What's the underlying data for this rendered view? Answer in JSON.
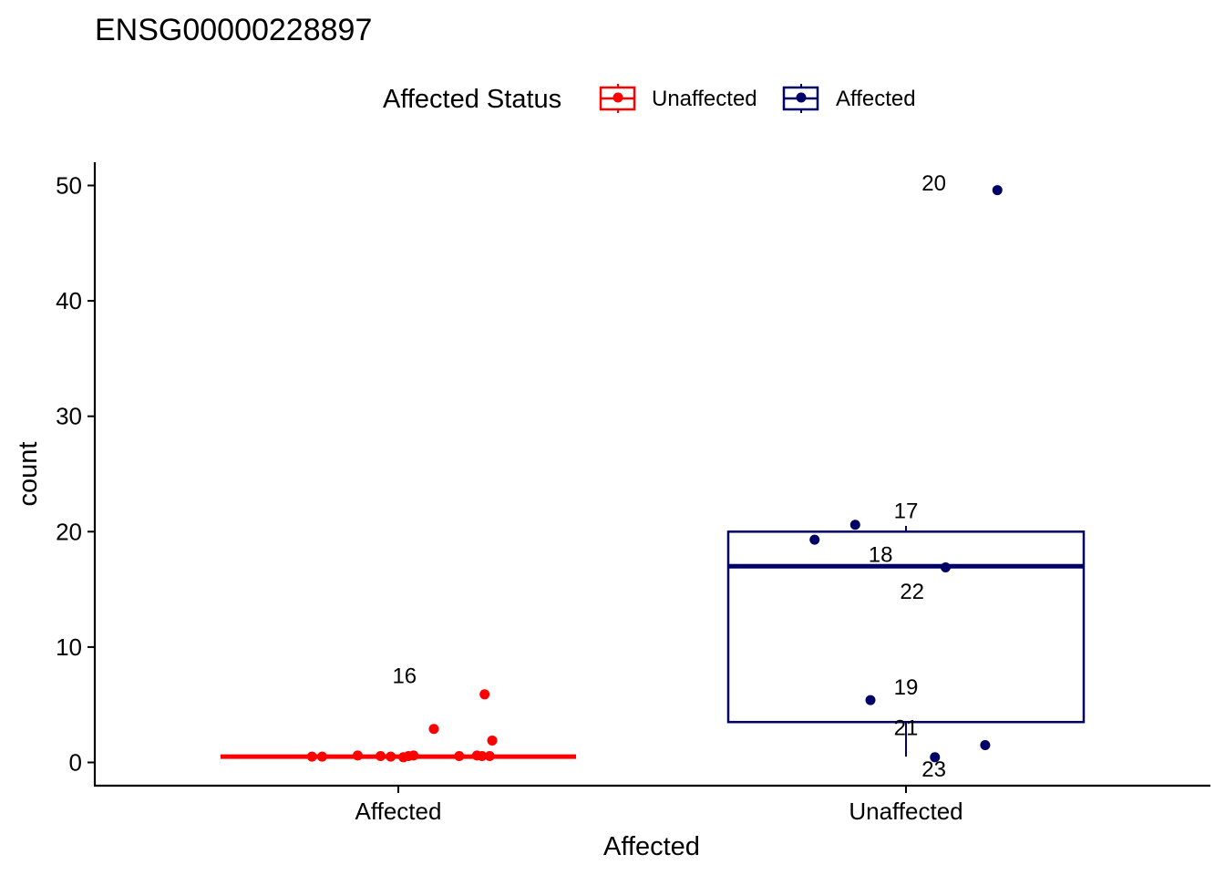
{
  "chart_data": {
    "type": "box",
    "title": "ENSG00000228897",
    "xlabel": "Affected",
    "ylabel": "count",
    "ylim": [
      -1.8,
      52
    ],
    "yticks": [
      0,
      10,
      20,
      30,
      40,
      50
    ],
    "categories": [
      "Affected",
      "Unaffected"
    ],
    "legend": {
      "title": "Affected Status",
      "position": "top",
      "entries": [
        {
          "label": "Unaffected",
          "color": "#ff0000"
        },
        {
          "label": "Affected",
          "color": "#000066"
        }
      ]
    },
    "groups": [
      {
        "category": "Affected",
        "status": "Unaffected",
        "color": "#ff0000",
        "box": {
          "lower": 0.5,
          "q1": 0.5,
          "median": 0.5,
          "q3": 0.5,
          "upper": 0.5
        },
        "points": [
          {
            "x": -0.17,
            "y": 0.5
          },
          {
            "x": -0.15,
            "y": 0.5
          },
          {
            "x": -0.08,
            "y": 0.6
          },
          {
            "x": -0.035,
            "y": 0.55
          },
          {
            "x": -0.015,
            "y": 0.5
          },
          {
            "x": 0.01,
            "y": 0.45
          },
          {
            "x": 0.02,
            "y": 0.55
          },
          {
            "x": 0.03,
            "y": 0.6
          },
          {
            "x": 0.07,
            "y": 2.9
          },
          {
            "x": 0.12,
            "y": 0.55
          },
          {
            "x": 0.155,
            "y": 0.6
          },
          {
            "x": 0.165,
            "y": 0.55
          },
          {
            "x": 0.17,
            "y": 5.9
          },
          {
            "x": 0.18,
            "y": 0.55
          },
          {
            "x": 0.185,
            "y": 1.9
          }
        ],
        "labels": [
          {
            "text": "16",
            "x": 0.0122,
            "y": 7.5
          }
        ]
      },
      {
        "category": "Unaffected",
        "status": "Affected",
        "color": "#000066",
        "box": {
          "lower": 0.5,
          "q1": 3.5,
          "median": 17,
          "q3": 20,
          "upper": 20.5
        },
        "points": [
          {
            "x": -0.18,
            "y": 19.3
          },
          {
            "x": -0.1,
            "y": 20.6
          },
          {
            "x": -0.07,
            "y": 5.4
          },
          {
            "x": 0.057,
            "y": 0.45
          },
          {
            "x": 0.078,
            "y": 16.9
          },
          {
            "x": 0.156,
            "y": 1.5
          },
          {
            "x": 0.18,
            "y": 49.6
          }
        ],
        "labels": [
          {
            "text": "17",
            "x": 0.0,
            "y": 21.8
          },
          {
            "text": "18",
            "x": -0.05,
            "y": 18.0
          },
          {
            "text": "22",
            "x": 0.012,
            "y": 14.8
          },
          {
            "text": "19",
            "x": 0.0,
            "y": 6.5
          },
          {
            "text": "21",
            "x": 0.0,
            "y": 3.0
          },
          {
            "text": "23",
            "x": 0.055,
            "y": -0.6
          },
          {
            "text": "20",
            "x": 0.055,
            "y": 50.2
          }
        ]
      }
    ]
  }
}
